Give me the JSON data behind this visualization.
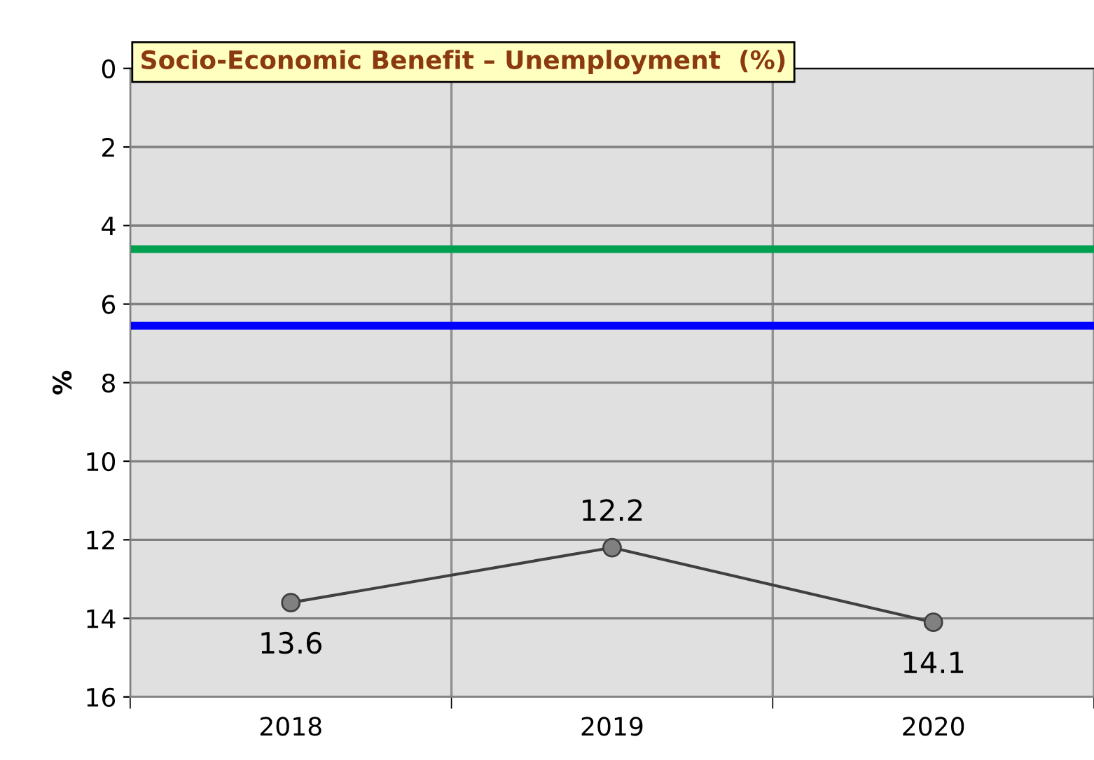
{
  "chart_data": {
    "type": "line",
    "title": "Socio-Economic Benefit – Unemployment  (%)",
    "ylabel": "%",
    "categories": [
      "2018",
      "2019",
      "2020"
    ],
    "series": [
      {
        "color": "#808080",
        "values": [
          13.6,
          12.2,
          14.1
        ]
      }
    ],
    "ylim": [
      16,
      0
    ],
    "yticks": [
      0,
      2,
      4,
      6,
      8,
      10,
      12,
      14,
      16
    ],
    "ref_lines": [
      {
        "axis": "y",
        "value": 4.6,
        "color": "#00a050"
      },
      {
        "axis": "y",
        "value": 6.55,
        "color": "#0000ff"
      }
    ],
    "data_labels": true,
    "grid": true,
    "marker": "circle",
    "line_style": "solid"
  }
}
